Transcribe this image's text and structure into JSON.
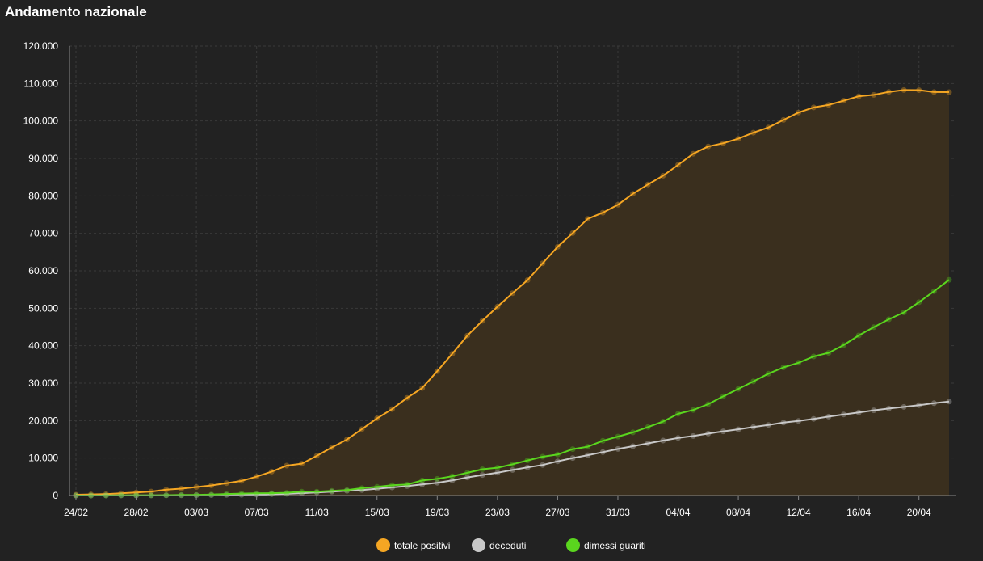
{
  "header": {
    "title": "Andamento nazionale"
  },
  "colors": {
    "background": "#222222",
    "grid": "#3a3a3a",
    "axis": "#888888",
    "positivi": "#f5a623",
    "deceduti": "#c8c8c8",
    "guariti": "#5ad61e"
  },
  "legend": [
    {
      "label": "totale positivi",
      "color": "#f5a623"
    },
    {
      "label": "deceduti",
      "color": "#c8c8c8"
    },
    {
      "label": "dimessi guariti",
      "color": "#5ad61e"
    }
  ],
  "chart_data": {
    "type": "line",
    "title": "Andamento nazionale",
    "xlabel": "",
    "ylabel": "",
    "ylim": [
      0,
      120000
    ],
    "grid": true,
    "legend_position": "bottom",
    "y_ticks": [
      0,
      10000,
      20000,
      30000,
      40000,
      50000,
      60000,
      70000,
      80000,
      90000,
      100000,
      110000,
      120000
    ],
    "y_tick_labels": [
      "0",
      "10.000",
      "20.000",
      "30.000",
      "40.000",
      "50.000",
      "60.000",
      "70.000",
      "80.000",
      "90.000",
      "100.000",
      "110.000",
      "120.000"
    ],
    "x_tick_labels": [
      "24/02",
      "28/02",
      "03/03",
      "07/03",
      "11/03",
      "15/03",
      "19/03",
      "23/03",
      "27/03",
      "31/03",
      "04/04",
      "08/04",
      "12/04",
      "16/04",
      "20/04"
    ],
    "x_tick_indices": [
      0,
      4,
      8,
      12,
      16,
      20,
      24,
      28,
      32,
      36,
      40,
      44,
      48,
      52,
      56
    ],
    "x": [
      "24/02",
      "25/02",
      "26/02",
      "27/02",
      "28/02",
      "29/02",
      "01/03",
      "02/03",
      "03/03",
      "04/03",
      "05/03",
      "06/03",
      "07/03",
      "08/03",
      "09/03",
      "10/03",
      "11/03",
      "12/03",
      "13/03",
      "14/03",
      "15/03",
      "16/03",
      "17/03",
      "18/03",
      "19/03",
      "20/03",
      "21/03",
      "22/03",
      "23/03",
      "24/03",
      "25/03",
      "26/03",
      "27/03",
      "28/03",
      "29/03",
      "30/03",
      "31/03",
      "01/04",
      "02/04",
      "03/04",
      "04/04",
      "05/04",
      "06/04",
      "07/04",
      "08/04",
      "09/04",
      "10/04",
      "11/04",
      "12/04",
      "13/04",
      "14/04",
      "15/04",
      "16/04",
      "17/04",
      "18/04",
      "19/04",
      "20/04",
      "21/04",
      "22/04"
    ],
    "series": [
      {
        "name": "totale positivi",
        "color": "#f5a623",
        "fill": true,
        "values": [
          221,
          311,
          385,
          588,
          821,
          1049,
          1577,
          1835,
          2263,
          2706,
          3296,
          3916,
          5061,
          6387,
          7985,
          8514,
          10590,
          12839,
          14955,
          17750,
          20603,
          23073,
          26062,
          28710,
          33190,
          37860,
          42681,
          46638,
          50418,
          54030,
          57521,
          62013,
          66414,
          70065,
          73880,
          75528,
          77635,
          80572,
          83049,
          85388,
          88274,
          91246,
          93187,
          94067,
          95262,
          96877,
          98273,
          100269,
          102253,
          103616,
          104291,
          105418,
          106607,
          106962,
          107771,
          108257,
          108237,
          107709,
          107699
        ]
      },
      {
        "name": "deceduti",
        "color": "#c8c8c8",
        "fill": false,
        "values": [
          7,
          10,
          12,
          17,
          21,
          29,
          34,
          52,
          79,
          107,
          148,
          197,
          233,
          366,
          463,
          631,
          827,
          1016,
          1266,
          1441,
          1809,
          2158,
          2503,
          2978,
          3405,
          4032,
          4825,
          5476,
          6077,
          6820,
          7503,
          8165,
          9134,
          10023,
          10779,
          11591,
          12428,
          13155,
          13915,
          14681,
          15362,
          15887,
          16523,
          17127,
          17669,
          18279,
          18849,
          19468,
          19899,
          20465,
          21067,
          21645,
          22170,
          22745,
          23227,
          23660,
          24114,
          24648,
          25085
        ]
      },
      {
        "name": "dimessi guariti",
        "color": "#5ad61e",
        "fill": false,
        "values": [
          1,
          1,
          3,
          45,
          46,
          50,
          83,
          149,
          160,
          276,
          414,
          523,
          589,
          622,
          724,
          1004,
          1045,
          1258,
          1439,
          1966,
          2335,
          2749,
          2941,
          4025,
          4440,
          5129,
          6072,
          7024,
          7432,
          8326,
          9362,
          10361,
          10950,
          12384,
          13030,
          14620,
          15729,
          16847,
          18278,
          19758,
          21815,
          22837,
          24392,
          26491,
          28470,
          30455,
          32534,
          34211,
          35435,
          37130,
          38092,
          40164,
          42727,
          44927,
          47055,
          48877,
          51600,
          54543,
          57576
        ]
      }
    ]
  }
}
